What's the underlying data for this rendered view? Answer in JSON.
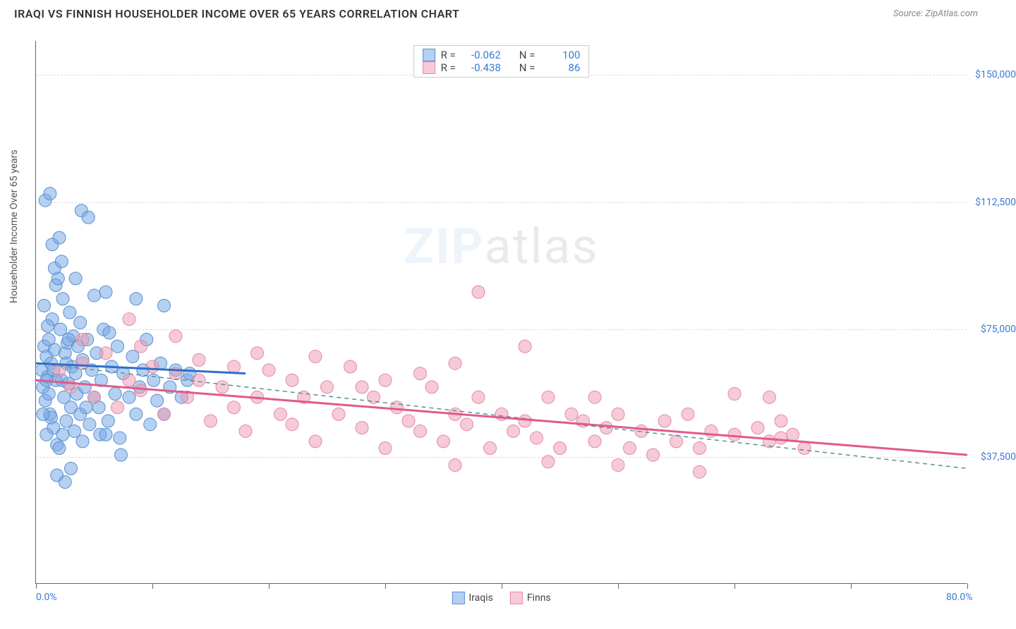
{
  "header": {
    "title": "IRAQI VS FINNISH HOUSEHOLDER INCOME OVER 65 YEARS CORRELATION CHART",
    "source": "Source: ZipAtlas.com"
  },
  "chart": {
    "type": "scatter",
    "ylabel": "Householder Income Over 65 years",
    "xlim": [
      0,
      80
    ],
    "ylim": [
      0,
      160000
    ],
    "x_ticks": [
      0,
      10,
      20,
      30,
      40,
      50,
      60,
      70,
      80
    ],
    "x_tick_labels_shown": {
      "0": "0.0%",
      "80": "80.0%"
    },
    "y_ticks": [
      37500,
      75000,
      112500,
      150000
    ],
    "y_tick_labels": [
      "$37,500",
      "$75,000",
      "$112,500",
      "$150,000"
    ],
    "grid_color": "#dddddd",
    "background_color": "#ffffff",
    "axis_color": "#666666",
    "watermark": "ZIPatlas",
    "series": [
      {
        "name": "Iraqis",
        "label": "Iraqis",
        "marker_color_fill": "rgba(120,170,230,0.55)",
        "marker_color_stroke": "#5a8fd0",
        "line_color": "#2e6fc9",
        "dash_line_color": "#5a8fa0",
        "marker_radius": 9,
        "R": "-0.062",
        "N": "100",
        "trend_solid": {
          "x1": 0,
          "y1": 65000,
          "x2": 18,
          "y2": 62000
        },
        "trend_dash": {
          "x1": 0,
          "y1": 65000,
          "x2": 80,
          "y2": 34000
        },
        "points": [
          [
            0.5,
            63000
          ],
          [
            0.6,
            58000
          ],
          [
            0.7,
            70000
          ],
          [
            0.8,
            54000
          ],
          [
            0.9,
            67000
          ],
          [
            1.0,
            61000
          ],
          [
            1.1,
            72000
          ],
          [
            1.2,
            50000
          ],
          [
            1.3,
            65000
          ],
          [
            1.4,
            78000
          ],
          [
            1.5,
            46000
          ],
          [
            1.6,
            69000
          ],
          [
            1.7,
            88000
          ],
          [
            1.8,
            41000
          ],
          [
            0.8,
            113000
          ],
          [
            1.2,
            115000
          ],
          [
            3.9,
            110000
          ],
          [
            1.9,
            90000
          ],
          [
            4.5,
            108000
          ],
          [
            2.1,
            75000
          ],
          [
            2.2,
            60000
          ],
          [
            2.3,
            84000
          ],
          [
            2.4,
            55000
          ],
          [
            2.5,
            68000
          ],
          [
            2.6,
            48000
          ],
          [
            2.7,
            71000
          ],
          [
            2.8,
            59000
          ],
          [
            2.9,
            80000
          ],
          [
            3.0,
            52000
          ],
          [
            3.1,
            64000
          ],
          [
            3.2,
            73000
          ],
          [
            3.3,
            45000
          ],
          [
            3.4,
            62000
          ],
          [
            3.5,
            56000
          ],
          [
            3.6,
            70000
          ],
          [
            3.8,
            50000
          ],
          [
            4.0,
            66000
          ],
          [
            4.2,
            58000
          ],
          [
            4.4,
            72000
          ],
          [
            4.6,
            47000
          ],
          [
            4.8,
            63000
          ],
          [
            5.0,
            55000
          ],
          [
            5.2,
            68000
          ],
          [
            5.4,
            52000
          ],
          [
            5.6,
            60000
          ],
          [
            5.8,
            75000
          ],
          [
            6.0,
            86000
          ],
          [
            6.2,
            48000
          ],
          [
            6.5,
            64000
          ],
          [
            6.8,
            56000
          ],
          [
            7.0,
            70000
          ],
          [
            7.3,
            38000
          ],
          [
            7.5,
            62000
          ],
          [
            7.2,
            43000
          ],
          [
            8.0,
            55000
          ],
          [
            8.3,
            67000
          ],
          [
            8.6,
            50000
          ],
          [
            8.6,
            84000
          ],
          [
            8.9,
            58000
          ],
          [
            9.2,
            63000
          ],
          [
            9.5,
            72000
          ],
          [
            9.8,
            47000
          ],
          [
            10.1,
            60000
          ],
          [
            10.4,
            54000
          ],
          [
            10.7,
            65000
          ],
          [
            11.0,
            50000
          ],
          [
            11.0,
            82000
          ],
          [
            11.5,
            58000
          ],
          [
            12.0,
            63000
          ],
          [
            12.5,
            55000
          ],
          [
            13.0,
            60000
          ],
          [
            13.2,
            62000
          ],
          [
            1.6,
            93000
          ],
          [
            2.0,
            40000
          ],
          [
            2.2,
            95000
          ],
          [
            3.0,
            34000
          ],
          [
            3.4,
            90000
          ],
          [
            0.9,
            44000
          ],
          [
            1.4,
            100000
          ],
          [
            0.7,
            82000
          ],
          [
            2.6,
            65000
          ],
          [
            4.0,
            42000
          ],
          [
            5.0,
            85000
          ],
          [
            1.1,
            56000
          ],
          [
            1.3,
            49000
          ],
          [
            2.0,
            102000
          ],
          [
            1.8,
            32000
          ],
          [
            1.0,
            76000
          ],
          [
            0.6,
            50000
          ],
          [
            2.3,
            44000
          ],
          [
            2.8,
            72000
          ],
          [
            3.8,
            77000
          ],
          [
            4.3,
            52000
          ],
          [
            5.5,
            44000
          ],
          [
            6.3,
            74000
          ],
          [
            2.5,
            30000
          ],
          [
            1.7,
            60000
          ],
          [
            0.9,
            60000
          ],
          [
            1.5,
            63000
          ],
          [
            6.0,
            44000
          ]
        ]
      },
      {
        "name": "Finns",
        "label": "Finns",
        "marker_color_fill": "rgba(240,150,175,0.5)",
        "marker_color_stroke": "#e08ba5",
        "line_color": "#e05a8a",
        "dash_line_color": "#e08ba5",
        "marker_radius": 9,
        "R": "-0.438",
        "N": "86",
        "trend_solid": {
          "x1": 0,
          "y1": 60000,
          "x2": 80,
          "y2": 38000
        },
        "trend_dash": null,
        "points": [
          [
            2,
            63000
          ],
          [
            3,
            58000
          ],
          [
            4,
            65000
          ],
          [
            5,
            55000
          ],
          [
            6,
            68000
          ],
          [
            7,
            52000
          ],
          [
            8,
            60000
          ],
          [
            8,
            78000
          ],
          [
            9,
            57000
          ],
          [
            10,
            64000
          ],
          [
            11,
            50000
          ],
          [
            12,
            62000
          ],
          [
            12,
            73000
          ],
          [
            13,
            55000
          ],
          [
            14,
            60000
          ],
          [
            15,
            48000
          ],
          [
            16,
            58000
          ],
          [
            17,
            64000
          ],
          [
            18,
            45000
          ],
          [
            19,
            55000
          ],
          [
            20,
            63000
          ],
          [
            21,
            50000
          ],
          [
            22,
            47000
          ],
          [
            22,
            60000
          ],
          [
            23,
            55000
          ],
          [
            24,
            42000
          ],
          [
            25,
            58000
          ],
          [
            26,
            50000
          ],
          [
            27,
            64000
          ],
          [
            28,
            46000
          ],
          [
            29,
            55000
          ],
          [
            30,
            40000
          ],
          [
            30,
            60000
          ],
          [
            31,
            52000
          ],
          [
            32,
            48000
          ],
          [
            33,
            45000
          ],
          [
            34,
            58000
          ],
          [
            35,
            42000
          ],
          [
            36,
            50000
          ],
          [
            36,
            65000
          ],
          [
            37,
            47000
          ],
          [
            38,
            55000
          ],
          [
            39,
            40000
          ],
          [
            40,
            50000
          ],
          [
            41,
            45000
          ],
          [
            42,
            70000
          ],
          [
            42,
            48000
          ],
          [
            43,
            43000
          ],
          [
            44,
            55000
          ],
          [
            45,
            40000
          ],
          [
            46,
            50000
          ],
          [
            38,
            86000
          ],
          [
            47,
            48000
          ],
          [
            48,
            42000
          ],
          [
            49,
            46000
          ],
          [
            50,
            50000
          ],
          [
            51,
            40000
          ],
          [
            52,
            45000
          ],
          [
            53,
            38000
          ],
          [
            54,
            48000
          ],
          [
            55,
            42000
          ],
          [
            56,
            50000
          ],
          [
            57,
            40000
          ],
          [
            58,
            45000
          ],
          [
            60,
            44000
          ],
          [
            62,
            46000
          ],
          [
            63,
            42000
          ],
          [
            64,
            48000
          ],
          [
            65,
            44000
          ],
          [
            66,
            40000
          ],
          [
            57,
            33000
          ],
          [
            44,
            36000
          ],
          [
            36,
            35000
          ],
          [
            19,
            68000
          ],
          [
            14,
            66000
          ],
          [
            9,
            70000
          ],
          [
            4,
            72000
          ],
          [
            50,
            35000
          ],
          [
            28,
            58000
          ],
          [
            33,
            62000
          ],
          [
            24,
            67000
          ],
          [
            17,
            52000
          ],
          [
            48,
            55000
          ],
          [
            60,
            56000
          ],
          [
            63,
            55000
          ],
          [
            64,
            43000
          ]
        ]
      }
    ],
    "legend_top_labels": {
      "R": "R =",
      "N": "N ="
    },
    "legend_bottom": [
      "Iraqis",
      "Finns"
    ]
  }
}
